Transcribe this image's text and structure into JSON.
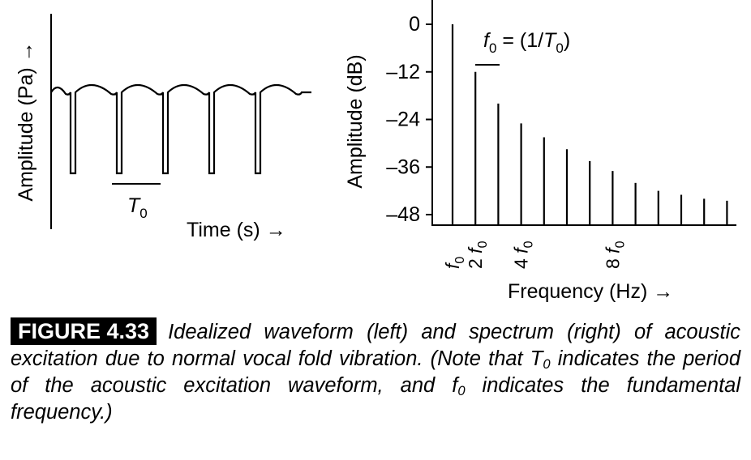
{
  "chart_data": [
    {
      "type": "line",
      "ylabel": "Amplitude (Pa)",
      "ylabel_arrow": "→",
      "xlabel": "Time (s)",
      "xlabel_arrow": "→",
      "annotation": {
        "symbol": "T",
        "subscript": "0"
      },
      "periods": 5
    },
    {
      "type": "bar",
      "ylabel": "Amplitude (dB)",
      "xlabel": "Frequency (Hz)",
      "xlabel_arrow": "→",
      "y_ticks": [
        "0",
        "–12",
        "–24",
        "–36",
        "–48"
      ],
      "ylim": [
        -48,
        0
      ],
      "harmonics": [
        1,
        2,
        3,
        4,
        5,
        6,
        7,
        8,
        9,
        10,
        11,
        12,
        13
      ],
      "values": [
        0,
        -12,
        -20,
        -25,
        -28.5,
        -31.5,
        -34.5,
        -37,
        -40,
        -42,
        -43,
        -44,
        -44.5
      ],
      "x_tick_labels": [
        {
          "harmonic": 1,
          "prefix": "",
          "symbol": "f",
          "subscript": "0"
        },
        {
          "harmonic": 2,
          "prefix": "2 ",
          "symbol": "f",
          "subscript": "0"
        },
        {
          "harmonic": 4,
          "prefix": "4 ",
          "symbol": "f",
          "subscript": "0"
        },
        {
          "harmonic": 8,
          "prefix": "8 ",
          "symbol": "f",
          "subscript": "0"
        }
      ],
      "annotation": {
        "symbol": "f",
        "subscript": "0",
        "eq": " = (1/",
        "symbol2": "T",
        "subscript2": "0",
        "close": ")"
      }
    }
  ],
  "caption": {
    "label": "FIGURE 4.33",
    "text_1": "Idealized waveform (left) and spectrum (right) of acoustic excitation due to normal vocal fold vibration. (Note that ",
    "t0_symbol": "T",
    "t0_sub": "0",
    "text_2": " indicates the period of the acoustic excitation waveform, and ",
    "f0_symbol": "f",
    "f0_sub": "0",
    "text_3": " indicates the fundamental frequency.)"
  }
}
